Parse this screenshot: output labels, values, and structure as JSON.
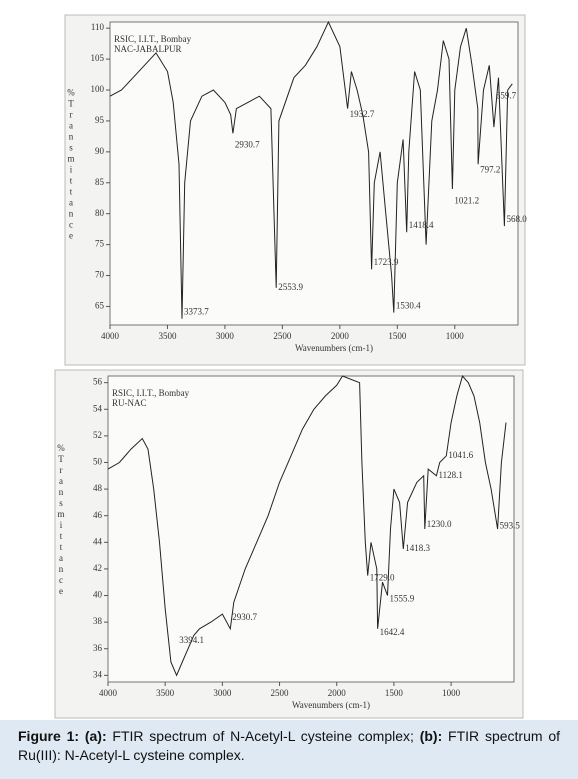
{
  "chart_data": [
    {
      "type": "line",
      "header": [
        "RSIC, I.I.T., Bombay",
        "NAC-JABALPUR"
      ],
      "ylabel": "%Transmittance",
      "xlabel": "Wavenumbers (cm-1)",
      "xlim": [
        4000,
        450
      ],
      "xticks": [
        4000,
        3500,
        3000,
        2500,
        2000,
        1500,
        1000
      ],
      "ylim": [
        62,
        111
      ],
      "yticks": [
        65,
        70,
        75,
        80,
        85,
        90,
        95,
        100,
        105,
        110
      ],
      "series": [
        {
          "color": "#222",
          "x": [
            4000,
            3900,
            3800,
            3700,
            3600,
            3500,
            3450,
            3400,
            3373.7,
            3350,
            3300,
            3200,
            3100,
            3000,
            2950,
            2930.7,
            2900,
            2800,
            2700,
            2600,
            2553.9,
            2530,
            2400,
            2300,
            2200,
            2100,
            2000,
            1980,
            1932.7,
            1900,
            1850,
            1800,
            1750,
            1723.9,
            1700,
            1650,
            1600,
            1550,
            1530.4,
            1500,
            1450,
            1418.4,
            1400,
            1350,
            1300,
            1250,
            1200,
            1150,
            1100,
            1050,
            1021.2,
            1000,
            950,
            900,
            850,
            800,
            797.2,
            750,
            700,
            659.7,
            620,
            568,
            540,
            500
          ],
          "values": [
            99,
            100,
            102,
            104,
            106,
            103,
            98,
            88,
            63,
            85,
            95,
            99,
            100,
            98,
            96,
            93,
            97,
            98,
            99,
            97,
            68,
            95,
            102,
            104,
            107,
            111,
            107,
            104,
            97,
            103,
            100,
            96,
            90,
            71,
            85,
            90,
            80,
            70,
            64,
            85,
            92,
            77,
            90,
            103,
            100,
            75,
            95,
            100,
            108,
            105,
            84,
            100,
            107,
            110,
            104,
            97,
            88,
            100,
            104,
            94,
            102,
            78,
            100,
            101
          ]
        }
      ],
      "annotations": [
        {
          "x": 3373.7,
          "y": 64,
          "label": "3373.7"
        },
        {
          "x": 2930.7,
          "y": 91,
          "label": "2930.7"
        },
        {
          "x": 2553.9,
          "y": 68,
          "label": "2553.9"
        },
        {
          "x": 1932.7,
          "y": 96,
          "label": "1932.7"
        },
        {
          "x": 1723.9,
          "y": 72,
          "label": "1723.9"
        },
        {
          "x": 1530.4,
          "y": 65,
          "label": "1530.4"
        },
        {
          "x": 1418.4,
          "y": 78,
          "label": "1418.4"
        },
        {
          "x": 1021.2,
          "y": 82,
          "label": "1021.2"
        },
        {
          "x": 797.2,
          "y": 87,
          "label": "797.2"
        },
        {
          "x": 659.7,
          "y": 99,
          "label": "659.7"
        },
        {
          "x": 568,
          "y": 79,
          "label": "568.0"
        }
      ]
    },
    {
      "type": "line",
      "header": [
        "RSIC, I.I.T., Bombay",
        "RU-NAC"
      ],
      "ylabel": "%Transmittance",
      "xlabel": "Wavenumbers (cm-1)",
      "xlim": [
        4000,
        450
      ],
      "xticks": [
        4000,
        3500,
        3000,
        2500,
        2000,
        1500,
        1000
      ],
      "ylim": [
        33.5,
        56.5
      ],
      "yticks": [
        34,
        36,
        38,
        40,
        42,
        44,
        46,
        48,
        50,
        52,
        54,
        56
      ],
      "series": [
        {
          "color": "#222",
          "x": [
            4000,
            3900,
            3800,
            3700,
            3650,
            3600,
            3550,
            3500,
            3450,
            3400,
            3350,
            3300,
            3250,
            3200,
            3100,
            3000,
            2930.7,
            2900,
            2800,
            2700,
            2600,
            2500,
            2400,
            2300,
            2200,
            2100,
            2000,
            1950,
            1800,
            1780,
            1750,
            1729,
            1700,
            1650,
            1642.4,
            1600,
            1555.9,
            1530,
            1500,
            1450,
            1418.3,
            1380,
            1300,
            1240,
            1230,
            1200,
            1128.1,
            1100,
            1041.6,
            1000,
            950,
            900,
            850,
            800,
            750,
            700,
            650,
            593.5,
            560,
            520
          ],
          "values": [
            49.5,
            50,
            51,
            51.8,
            51,
            48,
            44,
            39,
            35,
            34,
            35,
            36,
            37,
            37.5,
            38,
            38.6,
            37.5,
            39.5,
            42,
            44,
            46,
            48.5,
            50.5,
            52.5,
            54,
            55,
            55.8,
            56.5,
            56,
            50,
            44,
            41.5,
            44,
            42,
            37.5,
            41,
            40,
            45,
            48,
            47,
            43.5,
            47,
            48.5,
            49,
            45,
            49.5,
            49,
            50,
            50.5,
            53,
            55,
            56.5,
            56,
            55,
            53,
            50,
            48,
            45,
            50,
            53
          ]
        }
      ],
      "annotations": [
        {
          "x": 3394.1,
          "y": 36.6,
          "label": "3394.1"
        },
        {
          "x": 2930.7,
          "y": 38.3,
          "label": "2930.7"
        },
        {
          "x": 1729,
          "y": 41.3,
          "label": "1729.0"
        },
        {
          "x": 1555.9,
          "y": 39.7,
          "label": "1555.9"
        },
        {
          "x": 1642.4,
          "y": 37.2,
          "label": "1642.4"
        },
        {
          "x": 1418.3,
          "y": 43.5,
          "label": "1418.3"
        },
        {
          "x": 1230,
          "y": 45.3,
          "label": "1230.0"
        },
        {
          "x": 1128.1,
          "y": 49,
          "label": "1128.1"
        },
        {
          "x": 1041.6,
          "y": 50.5,
          "label": "1041.6"
        },
        {
          "x": 593.5,
          "y": 45.2,
          "label": "593.5"
        }
      ]
    }
  ],
  "caption": [
    {
      "text": "Figure 1:",
      "bold": true
    },
    {
      "text": " ",
      "bold": false
    },
    {
      "text": "(a):",
      "bold": true
    },
    {
      "text": " FTIR spectrum of N-Acetyl-L cysteine complex; ",
      "bold": false
    },
    {
      "text": "(b):",
      "bold": true
    },
    {
      "text": " FTIR spectrum of Ru(III): N-Acetyl-L cysteine complex.",
      "bold": false
    }
  ]
}
